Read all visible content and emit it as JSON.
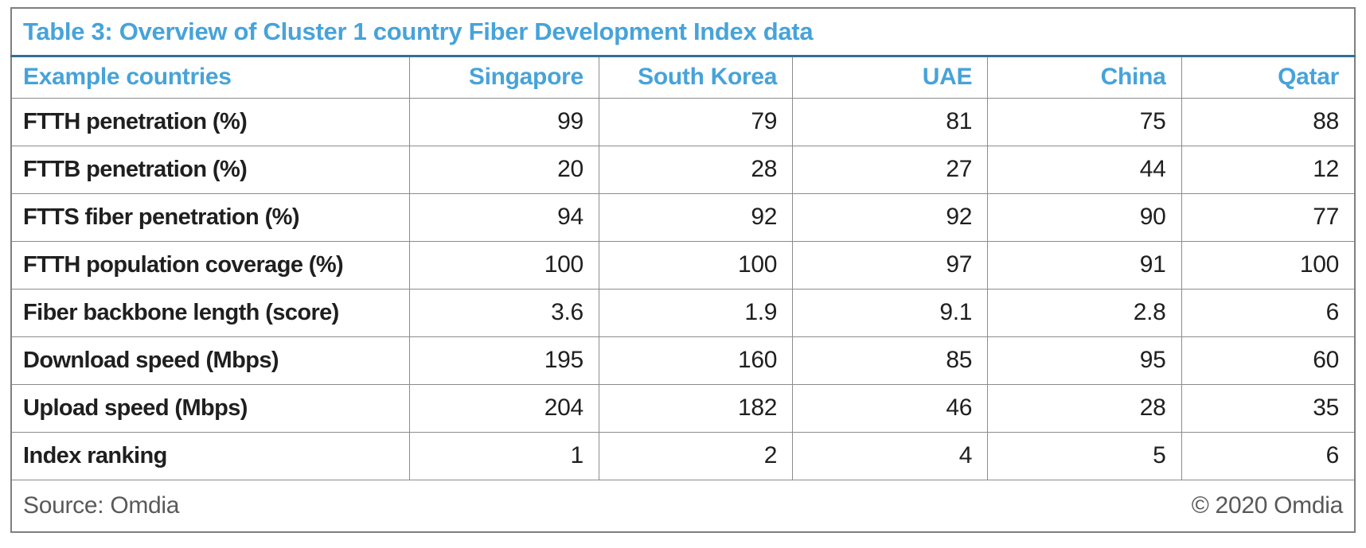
{
  "chart_data": {
    "type": "table",
    "title": "Table 3: Overview of Cluster 1 country Fiber Development Index data",
    "columns": [
      "Example countries",
      "Singapore",
      "South Korea",
      "UAE",
      "China",
      "Qatar"
    ],
    "rows": [
      {
        "label": "FTTH penetration (%)",
        "values": [
          "99",
          "79",
          "81",
          "75",
          "88"
        ]
      },
      {
        "label": "FTTB penetration (%)",
        "values": [
          "20",
          "28",
          "27",
          "44",
          "12"
        ]
      },
      {
        "label": "FTTS fiber penetration (%)",
        "values": [
          "94",
          "92",
          "92",
          "90",
          "77"
        ]
      },
      {
        "label": "FTTH population coverage (%)",
        "values": [
          "100",
          "100",
          "97",
          "91",
          "100"
        ]
      },
      {
        "label": "Fiber backbone length (score)",
        "values": [
          "3.6",
          "1.9",
          "9.1",
          "2.8",
          "6"
        ]
      },
      {
        "label": "Download speed (Mbps)",
        "values": [
          "195",
          "160",
          "85",
          "95",
          "60"
        ]
      },
      {
        "label": "Upload speed (Mbps)",
        "values": [
          "204",
          "182",
          "46",
          "28",
          "35"
        ]
      },
      {
        "label": "Index ranking",
        "values": [
          "1",
          "2",
          "4",
          "5",
          "6"
        ]
      }
    ]
  },
  "footer": {
    "source": "Source: Omdia",
    "copyright": "© 2020 Omdia"
  },
  "colors": {
    "accent_blue": "#47A3D9",
    "title_rule": "#336F96",
    "grid_line": "#8C8C8C",
    "outer_border": "#7F7F7F",
    "body_text": "#1F1F1F",
    "footer_text": "#595959"
  }
}
